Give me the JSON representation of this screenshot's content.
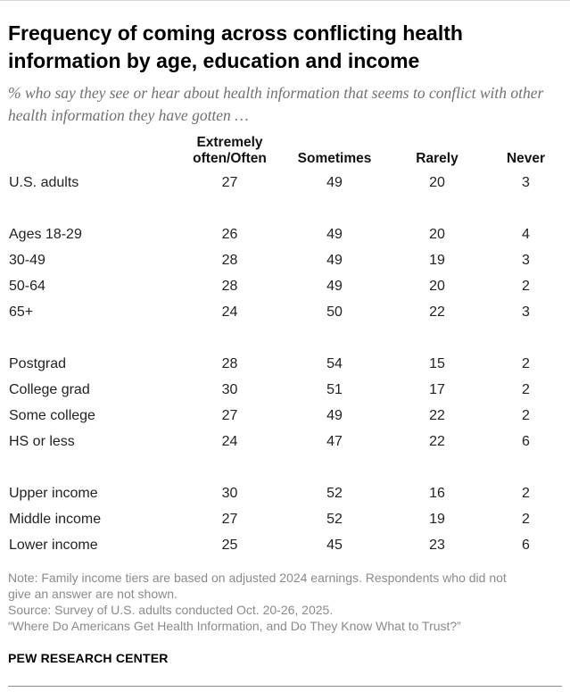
{
  "title": "Frequency of coming across conflicting health information by age, education and income",
  "subtitle": "% who say they see or hear about health information that seems to conflict with other health information they have gotten …",
  "chart_data": {
    "type": "table",
    "columns": [
      "Extremely often/Often",
      "Sometimes",
      "Rarely",
      "Never"
    ],
    "groups": [
      {
        "rows": [
          {
            "label": "U.S. adults",
            "values": [
              27,
              49,
              20,
              3
            ]
          }
        ]
      },
      {
        "rows": [
          {
            "label": "Ages 18-29",
            "values": [
              26,
              49,
              20,
              4
            ]
          },
          {
            "label": "30-49",
            "values": [
              28,
              49,
              19,
              3
            ]
          },
          {
            "label": "50-64",
            "values": [
              28,
              49,
              20,
              2
            ]
          },
          {
            "label": "65+",
            "values": [
              24,
              50,
              22,
              3
            ]
          }
        ]
      },
      {
        "rows": [
          {
            "label": "Postgrad",
            "values": [
              28,
              54,
              15,
              2
            ]
          },
          {
            "label": "College grad",
            "values": [
              30,
              51,
              17,
              2
            ]
          },
          {
            "label": "Some college",
            "values": [
              27,
              49,
              22,
              2
            ]
          },
          {
            "label": "HS or less",
            "values": [
              24,
              47,
              22,
              6
            ]
          }
        ]
      },
      {
        "rows": [
          {
            "label": "Upper income",
            "values": [
              30,
              52,
              16,
              2
            ]
          },
          {
            "label": "Middle income",
            "values": [
              27,
              52,
              19,
              2
            ]
          },
          {
            "label": "Lower income",
            "values": [
              25,
              45,
              23,
              6
            ]
          }
        ]
      }
    ]
  },
  "notes": {
    "note_line1": "Note: Family income tiers are based on adjusted 2024 earnings. Respondents who did not",
    "note_line2": "give an answer are not shown.",
    "source": "Source: Survey of U.S. adults conducted Oct. 20-26, 2025.",
    "report": "“Where Do Americans Get Health Information, and Do They Know What to Trust?”"
  },
  "brand": "PEW RESEARCH CENTER"
}
